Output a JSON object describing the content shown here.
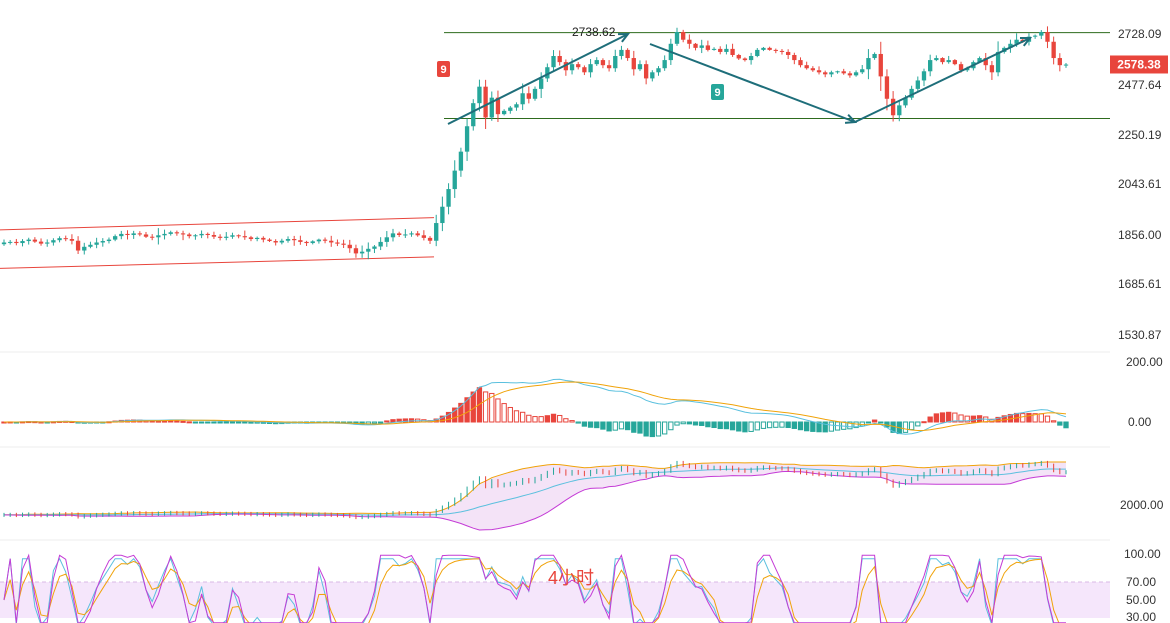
{
  "chart_data": [
    {
      "type": "candlestick",
      "panel": "price",
      "title": "",
      "ylim": [
        1450,
        2800
      ],
      "y_ticks": [
        "2728.09",
        "2477.64",
        "2250.19",
        "2043.61",
        "1856.00",
        "1685.61",
        "1530.87"
      ],
      "y_tick_values": [
        2728.09,
        2477.64,
        2250.19,
        2043.61,
        1856.0,
        1685.61,
        1530.87
      ],
      "last_price": 2578.38,
      "last_price_label": "2578.38",
      "high_label": "2738.62",
      "high_value": 2738.62,
      "td_badges": [
        {
          "label": "9",
          "color": "#e8453c",
          "near_value": 2560
        },
        {
          "label": "9",
          "color": "#26a69a",
          "near_value": 2470
        }
      ],
      "resistance_level": 2735,
      "support_level": 2325,
      "channel_lower_start": 1740,
      "channel_lower_end": 1780,
      "channel_upper_start": 1875,
      "channel_upper_end": 1920,
      "closes": [
        1830,
        1832,
        1828,
        1835,
        1840,
        1833,
        1826,
        1830,
        1838,
        1845,
        1842,
        1836,
        1802,
        1815,
        1822,
        1830,
        1835,
        1840,
        1852,
        1860,
        1856,
        1862,
        1858,
        1850,
        1848,
        1855,
        1860,
        1866,
        1862,
        1858,
        1852,
        1855,
        1860,
        1856,
        1850,
        1846,
        1850,
        1855,
        1852,
        1848,
        1842,
        1846,
        1840,
        1835,
        1830,
        1836,
        1842,
        1838,
        1832,
        1828,
        1834,
        1840,
        1836,
        1830,
        1826,
        1822,
        1810,
        1792,
        1798,
        1808,
        1816,
        1832,
        1848,
        1862,
        1856,
        1858,
        1862,
        1855,
        1846,
        1836,
        1900,
        1960,
        2025,
        2100,
        2180,
        2290,
        2395,
        2470,
        2330,
        2420,
        2345,
        2360,
        2375,
        2390,
        2440,
        2415,
        2460,
        2510,
        2565,
        2620,
        2590,
        2550,
        2580,
        2565,
        2540,
        2580,
        2600,
        2575,
        2560,
        2620,
        2650,
        2610,
        2555,
        2580,
        2510,
        2540,
        2560,
        2600,
        2680,
        2738,
        2700,
        2680,
        2660,
        2672,
        2650,
        2655,
        2640,
        2655,
        2625,
        2608,
        2600,
        2620,
        2650,
        2660,
        2650,
        2645,
        2640,
        2625,
        2600,
        2575,
        2560,
        2550,
        2540,
        2530,
        2540,
        2545,
        2535,
        2525,
        2540,
        2555,
        2610,
        2630,
        2520,
        2415,
        2340,
        2385,
        2420,
        2460,
        2500,
        2545,
        2600,
        2610,
        2590,
        2600,
        2580,
        2550,
        2560,
        2590,
        2610,
        2575,
        2540,
        2640,
        2660,
        2680,
        2700,
        2690,
        2715,
        2720,
        2738,
        2690,
        2610,
        2575,
        2578
      ],
      "ma_lines": [
        {
          "name": "",
          "color": "#e8453c"
        }
      ]
    },
    {
      "type": "macd",
      "panel": "macd",
      "y_ticks": [
        "200.00",
        "0.00"
      ],
      "y_tick_values": [
        200,
        0
      ],
      "ylim": [
        -60,
        200
      ],
      "line_colors": {
        "dif": "#5bc0de",
        "dea": "#f0a30a"
      },
      "hist_colors": {
        "pos": "#e8453c",
        "neg": "#26a69a"
      }
    },
    {
      "type": "bollinger",
      "panel": "boll",
      "y_ticks": [
        "2000.00"
      ],
      "y_tick_values": [
        2000
      ],
      "colors": {
        "upper": "#f0a30a",
        "mid": "#5bc0de",
        "lower": "#c43bd6",
        "fill": "#f1dcf5"
      }
    },
    {
      "type": "oscillator",
      "panel": "kdj",
      "y_ticks": [
        "100.00",
        "70.00",
        "50.00",
        "30.00"
      ],
      "y_tick_values": [
        100,
        70,
        50,
        30
      ],
      "band": [
        30,
        70
      ],
      "annotation": "4小时",
      "colors": {
        "k": "#5bc0de",
        "d": "#f0a30a",
        "j": "#c43bd6",
        "band": "#f5e6fb"
      }
    }
  ],
  "colors": {
    "up": "#26a69a",
    "down": "#e8453c",
    "trend_arrow": "#1e6e7a",
    "level_line": "#2e6b1e",
    "channel": "#e8453c",
    "axis_text": "#333333"
  }
}
